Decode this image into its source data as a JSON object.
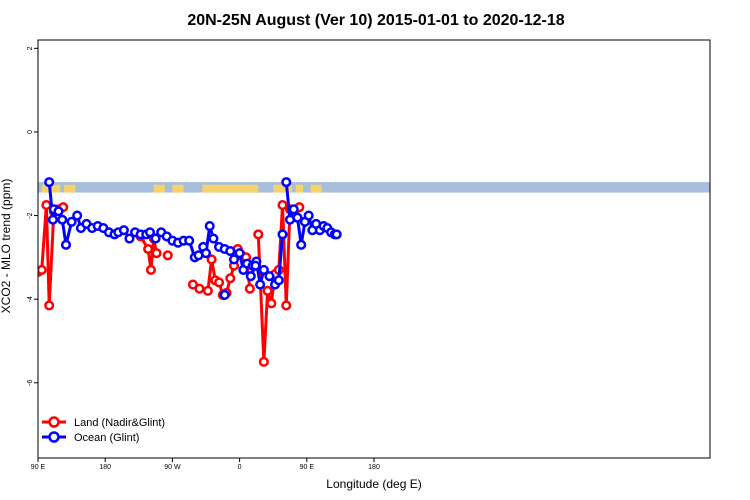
{
  "chart_data": {
    "type": "line",
    "title": "20N-25N August (Ver 10)   2015-01-01 to 2020-12-18",
    "xlabel": "Longitude (deg E)",
    "ylabel": "XCO2 - MLO trend (ppm)",
    "xlim": [
      -90,
      270
    ],
    "ylim": [
      -7.8,
      2.2
    ],
    "x_ticks": [
      {
        "value": -90,
        "label": "90 E"
      },
      {
        "value": -54,
        "label": "180"
      },
      {
        "value": -18,
        "label": "90 W"
      },
      {
        "value": 18,
        "label": "0"
      },
      {
        "value": 54,
        "label": "90 E"
      },
      {
        "value": 90,
        "label": "180"
      }
    ],
    "y_ticks": [
      {
        "value": 2,
        "label": "2"
      },
      {
        "value": 0,
        "label": "0"
      },
      {
        "value": -2,
        "label": "-2"
      },
      {
        "value": -4,
        "label": "-4"
      },
      {
        "value": -6,
        "label": "-6"
      }
    ],
    "x_tick_values": [
      -90,
      -54,
      -18,
      18,
      54,
      90
    ],
    "map_strip": {
      "y_top": -1.2,
      "y_bottom": -1.45,
      "ocean_color": "#a6bddb",
      "land_color": "#f5d26a"
    },
    "legend": {
      "position": "bottom-left"
    },
    "series": [
      {
        "name": "Land (Nadir&Glint)",
        "color": "#ff0000",
        "segments": [
          [
            [
              -90,
              -3.35
            ],
            [
              -88,
              -3.3
            ],
            [
              -85.5,
              -1.75
            ],
            [
              -84,
              -4.15
            ],
            [
              -81.5,
              -1.9
            ],
            [
              -79,
              -1.85
            ],
            [
              -76.5,
              -1.8
            ]
          ],
          [
            [
              -35,
              -2.5
            ],
            [
              -31,
              -2.8
            ],
            [
              -29.5,
              -3.3
            ],
            [
              -28,
              -2.55
            ],
            [
              -26.5,
              -2.9
            ]
          ],
          [
            [
              -20.5,
              -2.95
            ]
          ],
          [
            [
              -7,
              -3.65
            ],
            [
              -3.5,
              -3.75
            ]
          ],
          [
            [
              1,
              -3.8
            ],
            [
              3,
              -3.05
            ],
            [
              5,
              -3.55
            ],
            [
              7,
              -3.6
            ],
            [
              9,
              -3.9
            ],
            [
              11,
              -3.85
            ],
            [
              13,
              -3.5
            ],
            [
              15,
              -3.2
            ],
            [
              17,
              -2.8
            ],
            [
              19,
              -2.95
            ],
            [
              21.5,
              -3.0
            ],
            [
              23.5,
              -3.75
            ]
          ],
          [
            [
              28,
              -2.45
            ],
            [
              31,
              -5.5
            ],
            [
              33,
              -3.8
            ],
            [
              35,
              -4.1
            ],
            [
              37,
              -3.4
            ],
            [
              39,
              -3.3
            ],
            [
              41,
              -1.75
            ],
            [
              43,
              -4.15
            ],
            [
              45,
              -1.85
            ],
            [
              48,
              -1.85
            ],
            [
              50,
              -1.8
            ]
          ]
        ]
      },
      {
        "name": "Ocean (Glint)",
        "color": "#0000ff",
        "segments": [
          [
            [
              -84,
              -1.2
            ],
            [
              -82,
              -2.1
            ],
            [
              -81.5,
              -1.85
            ],
            [
              -79,
              -1.9
            ],
            [
              -77,
              -2.1
            ],
            [
              -75,
              -2.7
            ],
            [
              -72,
              -2.15
            ],
            [
              -69,
              -2.0
            ],
            [
              -67,
              -2.3
            ],
            [
              -64,
              -2.2
            ],
            [
              -61,
              -2.3
            ],
            [
              -58,
              -2.25
            ],
            [
              -55,
              -2.3
            ],
            [
              -52,
              -2.4
            ],
            [
              -49,
              -2.45
            ],
            [
              -47,
              -2.4
            ],
            [
              -44,
              -2.35
            ],
            [
              -41,
              -2.55
            ],
            [
              -38,
              -2.4
            ],
            [
              -35,
              -2.45
            ],
            [
              -32,
              -2.45
            ],
            [
              -30,
              -2.4
            ],
            [
              -27,
              -2.55
            ],
            [
              -24,
              -2.4
            ],
            [
              -21,
              -2.5
            ],
            [
              -18,
              -2.6
            ],
            [
              -15,
              -2.65
            ],
            [
              -12,
              -2.6
            ],
            [
              -9,
              -2.6
            ],
            [
              -6,
              -3.0
            ],
            [
              -4,
              -2.95
            ],
            [
              -1.5,
              -2.75
            ],
            [
              0,
              -2.9
            ],
            [
              2,
              -2.25
            ],
            [
              4,
              -2.55
            ],
            [
              7,
              -2.75
            ],
            [
              10,
              -2.8
            ],
            [
              13,
              -2.85
            ],
            [
              15,
              -3.05
            ],
            [
              18,
              -2.9
            ],
            [
              20,
              -3.3
            ],
            [
              22,
              -3.15
            ],
            [
              25,
              -3.2
            ],
            [
              27,
              -3.1
            ],
            [
              29,
              -3.65
            ],
            [
              31,
              -3.3
            ],
            [
              34,
              -3.45
            ],
            [
              37,
              -3.65
            ],
            [
              39,
              -3.55
            ],
            [
              41,
              -2.45
            ]
          ],
          [
            [
              10,
              -3.9
            ]
          ],
          [
            [
              24,
              -3.45
            ],
            [
              26.5,
              -3.2
            ]
          ],
          [
            [
              43,
              -1.2
            ],
            [
              45,
              -2.1
            ],
            [
              47,
              -1.85
            ],
            [
              49,
              -2.05
            ],
            [
              51,
              -2.7
            ],
            [
              53,
              -2.15
            ],
            [
              55,
              -2.0
            ],
            [
              57,
              -2.35
            ],
            [
              59,
              -2.2
            ],
            [
              61,
              -2.35
            ],
            [
              63,
              -2.25
            ],
            [
              65,
              -2.3
            ],
            [
              67,
              -2.4
            ],
            [
              69,
              -2.45
            ],
            [
              70,
              -2.45
            ]
          ]
        ]
      }
    ]
  }
}
